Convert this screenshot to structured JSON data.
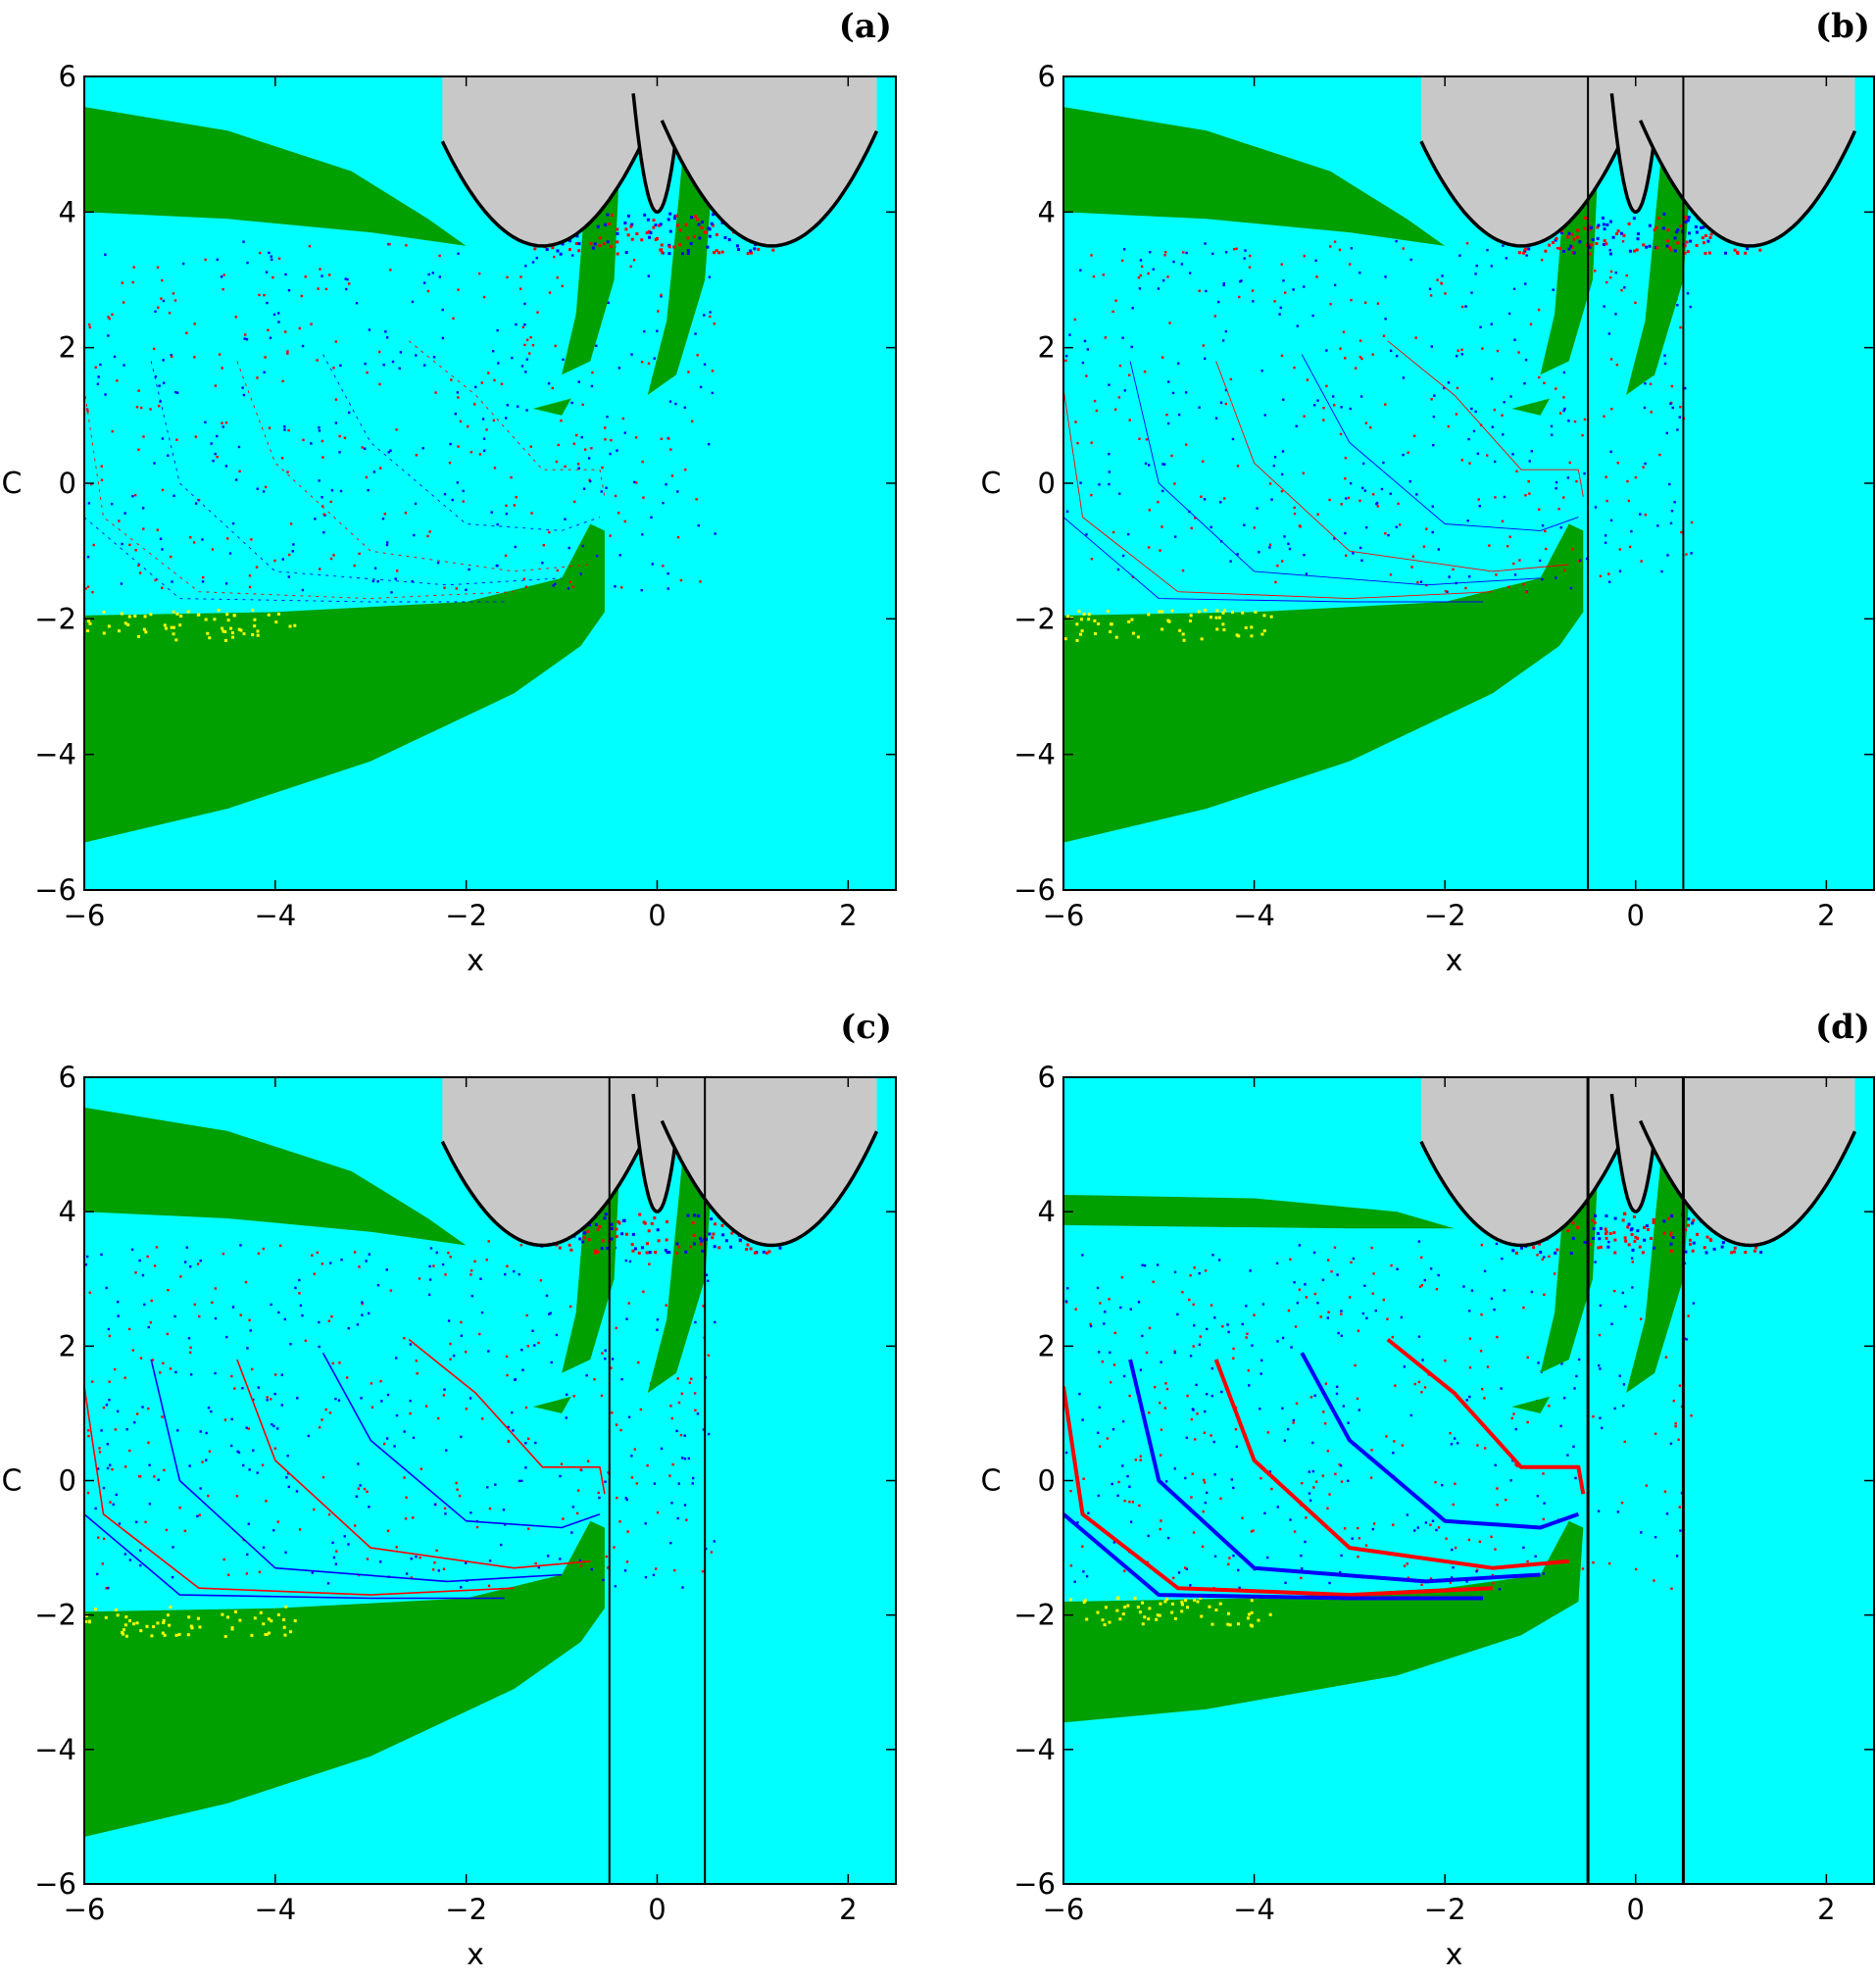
{
  "chart_data": [
    {
      "panel": "(a)",
      "type": "heatmap",
      "xlabel": "x",
      "ylabel": "C",
      "xlim": [
        -6,
        2.5
      ],
      "ylim": [
        -6,
        6
      ],
      "xticks": [
        "−6",
        "−4",
        "−2",
        "0",
        "2"
      ],
      "yticks": [
        "−6",
        "−4",
        "−2",
        "0",
        "2",
        "4",
        "6"
      ],
      "vlines": [],
      "region_colors": {
        "background": "#00FFFF",
        "islands": "#00A000",
        "forbidden": "#C8C8C8",
        "basin_red": "#FF0000",
        "basin_blue": "#0000FF",
        "other": "#FFFF00"
      },
      "filament_width": 0.9
    },
    {
      "panel": "(b)",
      "type": "heatmap",
      "xlabel": "x",
      "ylabel": "C",
      "xlim": [
        -6,
        2.5
      ],
      "ylim": [
        -6,
        6
      ],
      "xticks": [
        "−6",
        "−4",
        "−2",
        "0",
        "2"
      ],
      "yticks": [
        "−6",
        "−4",
        "−2",
        "0",
        "2",
        "4",
        "6"
      ],
      "vlines": [
        -0.5,
        0.5
      ],
      "region_colors": {
        "background": "#00FFFF",
        "islands": "#00A000",
        "forbidden": "#C8C8C8",
        "basin_red": "#FF0000",
        "basin_blue": "#0000FF",
        "other": "#FFFF00"
      },
      "filament_width": 0.9
    },
    {
      "panel": "(c)",
      "type": "heatmap",
      "xlabel": "x",
      "ylabel": "C",
      "xlim": [
        -6,
        2.5
      ],
      "ylim": [
        -6,
        6
      ],
      "xticks": [
        "−6",
        "−4",
        "−2",
        "0",
        "2"
      ],
      "yticks": [
        "−6",
        "−4",
        "−2",
        "0",
        "2",
        "4",
        "6"
      ],
      "vlines": [
        -0.5,
        0.5
      ],
      "region_colors": {
        "background": "#00FFFF",
        "islands": "#00A000",
        "forbidden": "#C8C8C8",
        "basin_red": "#FF0000",
        "basin_blue": "#0000FF",
        "other": "#FFFF00"
      },
      "filament_width": 1.6
    },
    {
      "panel": "(d)",
      "type": "heatmap",
      "xlabel": "x",
      "ylabel": "C",
      "xlim": [
        -6,
        2.5
      ],
      "ylim": [
        -6,
        6
      ],
      "xticks": [
        "−6",
        "−4",
        "−2",
        "0",
        "2"
      ],
      "yticks": [
        "−6",
        "−4",
        "−2",
        "0",
        "2",
        "4",
        "6"
      ],
      "vlines": [
        -0.5,
        0.5
      ],
      "region_colors": {
        "background": "#00FFFF",
        "islands": "#00A000",
        "forbidden": "#C8C8C8",
        "basin_red": "#FF0000",
        "basin_blue": "#0000FF",
        "other": "#FFFF00"
      },
      "filament_width": 4.0
    }
  ]
}
